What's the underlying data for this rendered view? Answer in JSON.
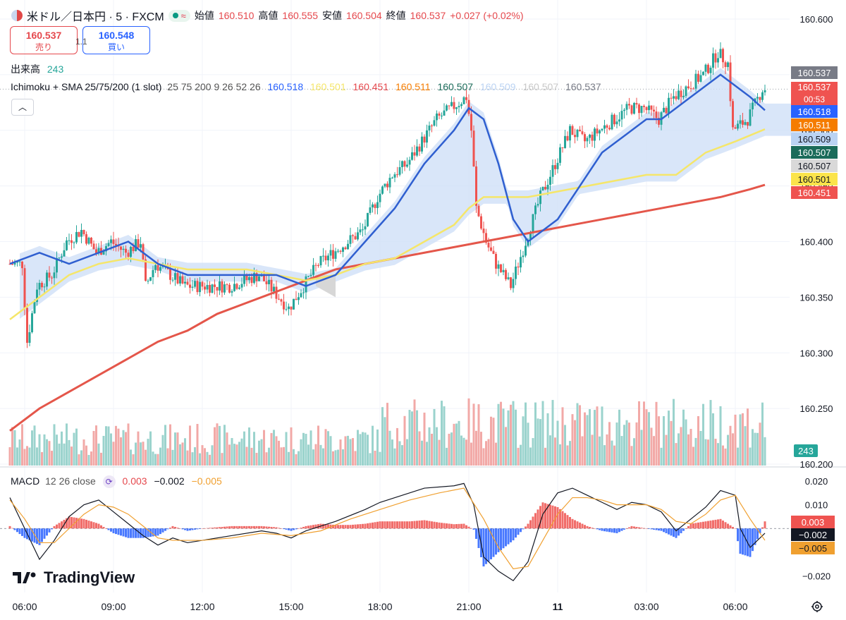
{
  "header": {
    "symbol": "米ドル／日本円 · 5 · FXCM",
    "open_label": "始値",
    "open": "160.510",
    "high_label": "高値",
    "high": "160.555",
    "low_label": "安値",
    "low": "160.504",
    "close_label": "終値",
    "close": "160.537",
    "change": "+0.027 (+0.02%)"
  },
  "trade": {
    "sell_price": "160.537",
    "sell_label": "売り",
    "buy_price": "160.548",
    "buy_label": "買い",
    "spread": "1.1"
  },
  "volume_legend": {
    "label": "出来高",
    "value": "243"
  },
  "indicator_legend": {
    "name": "Ichimoku + SMA 25/75/200 (1 slot)",
    "params": "25 75 200 9 26 52 26",
    "values": [
      "160.518",
      "160.501",
      "160.451",
      "160.511",
      "160.507",
      "160.509",
      "160.507",
      "160.537"
    ]
  },
  "macd_legend": {
    "name": "MACD",
    "params": "12 26 close",
    "hist": "0.003",
    "macd": "−0.002",
    "signal": "−0.005"
  },
  "brand": "TradingView",
  "colors": {
    "up": "#26a69a",
    "down": "#ef5350",
    "sma25": "#2f5fd0",
    "sma75": "#f5e66a",
    "sma200": "#e4564a",
    "cloud": "#cfe0f8",
    "cloud_bear": "#d7d7d7",
    "macd": "#131722",
    "signal": "#f0a030"
  },
  "chart_data": [
    {
      "type": "candlestick",
      "title": "米ドル／日本円 · 5 · FXCM",
      "x_ticks": [
        "06:00",
        "09:00",
        "12:00",
        "15:00",
        "18:00",
        "21:00",
        "11",
        "03:00",
        "06:00"
      ],
      "y_ticks": [
        "160.600",
        "160.550",
        "160.500",
        "160.450",
        "160.400",
        "160.350",
        "160.300",
        "160.250",
        "160.200"
      ],
      "ylim": [
        160.2,
        160.6
      ],
      "x_start": "06:00",
      "bar_minutes": 5,
      "sma_labels": [
        "SMA25",
        "SMA75",
        "SMA200"
      ],
      "price_axis_labels": [
        {
          "value": "160.537",
          "bg": "#787b86"
        },
        {
          "value": "160.537",
          "sub": "00:53",
          "bg": "#ef5350"
        },
        {
          "value": "160.518",
          "bg": "#2962ff"
        },
        {
          "value": "160.511",
          "bg": "#f57c00"
        },
        {
          "value": "160.509",
          "bg": "#bbd3f3"
        },
        {
          "value": "160.507",
          "bg": "#1b6b5a"
        },
        {
          "value": "160.507",
          "bg": "#d9d9d9"
        },
        {
          "value": "160.501",
          "bg": "#fbe44b"
        },
        {
          "value": "160.451",
          "bg": "#ef5350"
        }
      ],
      "volume_label": "243",
      "price_keypoints": [
        [
          "05:30",
          160.38
        ],
        [
          "06:00",
          160.38
        ],
        [
          "06:10",
          160.31
        ],
        [
          "06:30",
          160.36
        ],
        [
          "07:00",
          160.37
        ],
        [
          "07:30",
          160.4
        ],
        [
          "08:00",
          160.41
        ],
        [
          "08:30",
          160.39
        ],
        [
          "09:00",
          160.4
        ],
        [
          "09:30",
          160.39
        ],
        [
          "10:00",
          160.4
        ],
        [
          "10:10",
          160.36
        ],
        [
          "10:30",
          160.38
        ],
        [
          "11:00",
          160.37
        ],
        [
          "11:30",
          160.36
        ],
        [
          "12:00",
          160.36
        ],
        [
          "13:00",
          160.36
        ],
        [
          "14:00",
          160.37
        ],
        [
          "15:00",
          160.34
        ],
        [
          "15:30",
          160.36
        ],
        [
          "16:00",
          160.38
        ],
        [
          "16:30",
          160.39
        ],
        [
          "17:00",
          160.4
        ],
        [
          "17:30",
          160.41
        ],
        [
          "18:00",
          160.44
        ],
        [
          "18:30",
          160.46
        ],
        [
          "19:00",
          160.47
        ],
        [
          "19:30",
          160.49
        ],
        [
          "20:00",
          160.51
        ],
        [
          "20:30",
          160.52
        ],
        [
          "21:00",
          160.53
        ],
        [
          "21:10",
          160.5
        ],
        [
          "21:20",
          160.43
        ],
        [
          "21:40",
          160.4
        ],
        [
          "22:00",
          160.38
        ],
        [
          "22:30",
          160.36
        ],
        [
          "23:00",
          160.4
        ],
        [
          "23:30",
          160.44
        ],
        [
          "00:00",
          160.47
        ],
        [
          "00:30",
          160.5
        ],
        [
          "01:00",
          160.49
        ],
        [
          "01:30",
          160.5
        ],
        [
          "02:00",
          160.51
        ],
        [
          "02:30",
          160.52
        ],
        [
          "03:00",
          160.52
        ],
        [
          "03:30",
          160.51
        ],
        [
          "04:00",
          160.53
        ],
        [
          "04:30",
          160.54
        ],
        [
          "05:00",
          160.55
        ],
        [
          "05:30",
          160.57
        ],
        [
          "05:50",
          160.56
        ],
        [
          "06:00",
          160.5
        ],
        [
          "06:30",
          160.51
        ],
        [
          "07:00",
          160.537
        ]
      ],
      "sma25_keypoints": [
        [
          "05:30",
          160.38
        ],
        [
          "06:30",
          160.39
        ],
        [
          "07:30",
          160.38
        ],
        [
          "08:30",
          160.39
        ],
        [
          "09:30",
          160.4
        ],
        [
          "10:30",
          160.38
        ],
        [
          "11:30",
          160.37
        ],
        [
          "12:30",
          160.37
        ],
        [
          "13:30",
          160.37
        ],
        [
          "14:30",
          160.37
        ],
        [
          "15:30",
          160.36
        ],
        [
          "16:30",
          160.37
        ],
        [
          "17:30",
          160.4
        ],
        [
          "18:30",
          160.43
        ],
        [
          "19:30",
          160.47
        ],
        [
          "20:30",
          160.5
        ],
        [
          "21:00",
          160.52
        ],
        [
          "21:30",
          160.51
        ],
        [
          "22:00",
          160.47
        ],
        [
          "22:30",
          160.42
        ],
        [
          "23:00",
          160.4
        ],
        [
          "23:30",
          160.41
        ],
        [
          "00:00",
          160.42
        ],
        [
          "00:30",
          160.44
        ],
        [
          "01:00",
          160.46
        ],
        [
          "01:30",
          160.48
        ],
        [
          "02:00",
          160.49
        ],
        [
          "02:30",
          160.5
        ],
        [
          "03:00",
          160.51
        ],
        [
          "03:30",
          160.51
        ],
        [
          "04:00",
          160.52
        ],
        [
          "04:30",
          160.53
        ],
        [
          "05:00",
          160.54
        ],
        [
          "05:30",
          160.55
        ],
        [
          "06:00",
          160.54
        ],
        [
          "06:30",
          160.53
        ],
        [
          "07:00",
          160.518
        ]
      ],
      "sma75_keypoints": [
        [
          "05:30",
          160.33
        ],
        [
          "06:30",
          160.35
        ],
        [
          "07:30",
          160.37
        ],
        [
          "08:30",
          160.38
        ],
        [
          "09:30",
          160.385
        ],
        [
          "10:30",
          160.38
        ],
        [
          "11:30",
          160.375
        ],
        [
          "12:30",
          160.375
        ],
        [
          "13:30",
          160.375
        ],
        [
          "14:30",
          160.37
        ],
        [
          "15:30",
          160.365
        ],
        [
          "16:30",
          160.37
        ],
        [
          "17:30",
          160.38
        ],
        [
          "18:30",
          160.385
        ],
        [
          "19:30",
          160.4
        ],
        [
          "20:30",
          160.415
        ],
        [
          "21:00",
          160.43
        ],
        [
          "21:30",
          160.44
        ],
        [
          "22:00",
          160.44
        ],
        [
          "23:00",
          160.44
        ],
        [
          "00:00",
          160.445
        ],
        [
          "01:00",
          160.45
        ],
        [
          "02:00",
          160.455
        ],
        [
          "03:00",
          160.46
        ],
        [
          "04:00",
          160.46
        ],
        [
          "05:00",
          160.48
        ],
        [
          "06:00",
          160.49
        ],
        [
          "07:00",
          160.501
        ]
      ],
      "sma200_keypoints": [
        [
          "05:30",
          160.23
        ],
        [
          "06:30",
          160.25
        ],
        [
          "07:30",
          160.265
        ],
        [
          "08:30",
          160.28
        ],
        [
          "09:30",
          160.295
        ],
        [
          "10:30",
          160.31
        ],
        [
          "11:30",
          160.32
        ],
        [
          "12:30",
          160.335
        ],
        [
          "13:30",
          160.345
        ],
        [
          "14:30",
          160.355
        ],
        [
          "15:30",
          160.365
        ],
        [
          "16:30",
          160.375
        ],
        [
          "17:30",
          160.38
        ],
        [
          "18:30",
          160.385
        ],
        [
          "19:30",
          160.39
        ],
        [
          "20:30",
          160.395
        ],
        [
          "21:30",
          160.4
        ],
        [
          "22:30",
          160.405
        ],
        [
          "23:30",
          160.41
        ],
        [
          "00:30",
          160.415
        ],
        [
          "01:30",
          160.42
        ],
        [
          "02:30",
          160.425
        ],
        [
          "03:30",
          160.43
        ],
        [
          "04:30",
          160.435
        ],
        [
          "05:30",
          160.44
        ],
        [
          "06:30",
          160.447
        ],
        [
          "07:00",
          160.451
        ]
      ]
    },
    {
      "type": "bar+line",
      "title": "MACD",
      "y_ticks": [
        "0.020",
        "0.010",
        "-0.020"
      ],
      "ylim": [
        -0.025,
        0.023
      ],
      "value_labels": [
        {
          "value": "0.003",
          "bg": "#ef5350"
        },
        {
          "value": "−0.002",
          "bg": "#131722"
        },
        {
          "value": "−0.005",
          "bg": "#f0a030"
        }
      ],
      "macd_keypoints": [
        [
          "05:30",
          0.013
        ],
        [
          "06:00",
          0.0
        ],
        [
          "06:30",
          -0.013
        ],
        [
          "07:00",
          -0.005
        ],
        [
          "07:30",
          0.005
        ],
        [
          "08:00",
          0.01
        ],
        [
          "08:30",
          0.012
        ],
        [
          "09:00",
          0.007
        ],
        [
          "09:30",
          0.002
        ],
        [
          "10:00",
          -0.003
        ],
        [
          "10:30",
          -0.007
        ],
        [
          "11:00",
          -0.004
        ],
        [
          "11:30",
          -0.006
        ],
        [
          "12:00",
          -0.005
        ],
        [
          "13:00",
          -0.003
        ],
        [
          "14:00",
          -0.001
        ],
        [
          "14:30",
          -0.002
        ],
        [
          "15:00",
          -0.004
        ],
        [
          "15:30",
          -0.001
        ],
        [
          "16:30",
          0.003
        ],
        [
          "17:30",
          0.008
        ],
        [
          "18:00",
          0.011
        ],
        [
          "18:30",
          0.013
        ],
        [
          "19:30",
          0.017
        ],
        [
          "20:30",
          0.018
        ],
        [
          "20:50",
          0.019
        ],
        [
          "21:10",
          0.01
        ],
        [
          "21:30",
          -0.012
        ],
        [
          "22:00",
          -0.018
        ],
        [
          "22:30",
          -0.022
        ],
        [
          "23:00",
          -0.014
        ],
        [
          "23:30",
          0.006
        ],
        [
          "00:00",
          0.015
        ],
        [
          "00:30",
          0.017
        ],
        [
          "01:00",
          0.014
        ],
        [
          "01:30",
          0.011
        ],
        [
          "02:00",
          0.008
        ],
        [
          "02:30",
          0.011
        ],
        [
          "03:00",
          0.01
        ],
        [
          "03:30",
          0.007
        ],
        [
          "04:00",
          -0.001
        ],
        [
          "04:30",
          0.004
        ],
        [
          "05:00",
          0.009
        ],
        [
          "05:30",
          0.016
        ],
        [
          "06:00",
          0.014
        ],
        [
          "06:10",
          0.0
        ],
        [
          "06:30",
          -0.008
        ],
        [
          "07:00",
          -0.002
        ]
      ],
      "signal_keypoints": [
        [
          "05:30",
          0.012
        ],
        [
          "06:00",
          0.004
        ],
        [
          "06:30",
          -0.006
        ],
        [
          "07:00",
          -0.006
        ],
        [
          "07:30",
          0.0
        ],
        [
          "08:00",
          0.006
        ],
        [
          "08:30",
          0.01
        ],
        [
          "09:00",
          0.009
        ],
        [
          "09:30",
          0.006
        ],
        [
          "10:00",
          0.001
        ],
        [
          "10:30",
          -0.004
        ],
        [
          "11:00",
          -0.005
        ],
        [
          "11:30",
          -0.005
        ],
        [
          "12:00",
          -0.005
        ],
        [
          "13:00",
          -0.004
        ],
        [
          "14:00",
          -0.002
        ],
        [
          "15:00",
          -0.003
        ],
        [
          "16:00",
          -0.001
        ],
        [
          "17:00",
          0.004
        ],
        [
          "18:00",
          0.008
        ],
        [
          "19:00",
          0.012
        ],
        [
          "20:00",
          0.015
        ],
        [
          "20:50",
          0.017
        ],
        [
          "21:30",
          0.004
        ],
        [
          "22:00",
          -0.008
        ],
        [
          "22:30",
          -0.017
        ],
        [
          "23:00",
          -0.016
        ],
        [
          "23:30",
          -0.005
        ],
        [
          "00:00",
          0.006
        ],
        [
          "00:30",
          0.013
        ],
        [
          "01:00",
          0.013
        ],
        [
          "01:30",
          0.012
        ],
        [
          "02:00",
          0.01
        ],
        [
          "02:30",
          0.01
        ],
        [
          "03:00",
          0.01
        ],
        [
          "03:30",
          0.008
        ],
        [
          "04:00",
          0.003
        ],
        [
          "04:30",
          0.002
        ],
        [
          "05:00",
          0.006
        ],
        [
          "05:30",
          0.012
        ],
        [
          "06:00",
          0.014
        ],
        [
          "06:30",
          0.004
        ],
        [
          "07:00",
          -0.005
        ]
      ]
    }
  ]
}
